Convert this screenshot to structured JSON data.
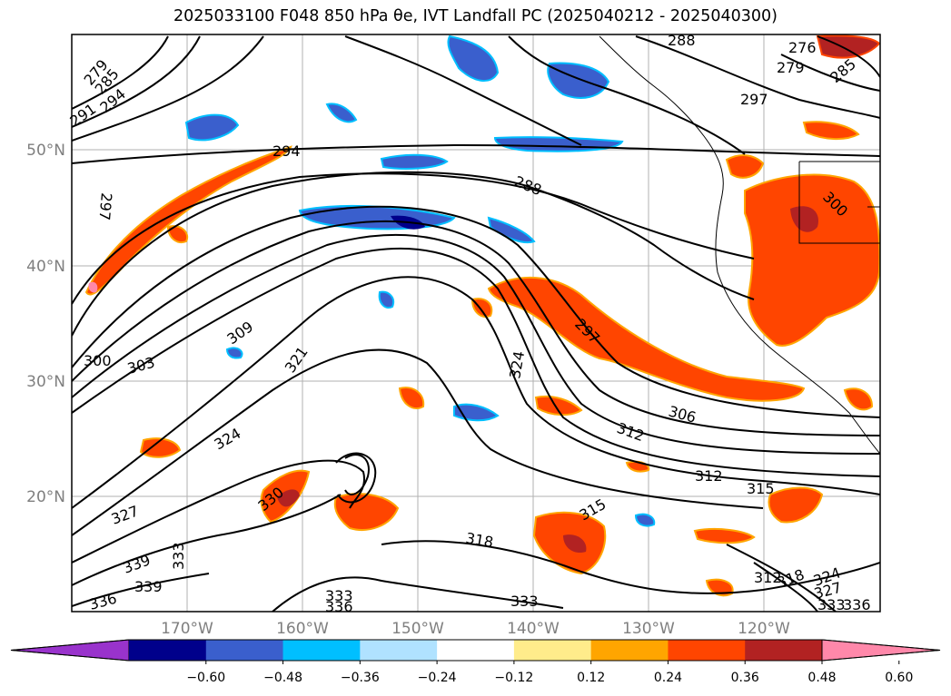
{
  "title": "2025033100 F048 850 hPa θe, IVT Landfall PC (2025040212 - 2025040300)",
  "map": {
    "lat_ticks": [
      "50°N",
      "40°N",
      "30°N",
      "20°N"
    ],
    "lon_ticks": [
      "170°W",
      "160°W",
      "150°W",
      "140°W",
      "130°W",
      "120°W"
    ],
    "contour_labels": [
      {
        "text": "279"
      },
      {
        "text": "285"
      },
      {
        "text": "294"
      },
      {
        "text": "291"
      },
      {
        "text": "294"
      },
      {
        "text": "297"
      },
      {
        "text": "288"
      },
      {
        "text": "276"
      },
      {
        "text": "279"
      },
      {
        "text": "285"
      },
      {
        "text": "297"
      },
      {
        "text": "288"
      },
      {
        "text": "300"
      },
      {
        "text": "300"
      },
      {
        "text": "303"
      },
      {
        "text": "309"
      },
      {
        "text": "321"
      },
      {
        "text": "324"
      },
      {
        "text": "297"
      },
      {
        "text": "306"
      },
      {
        "text": "312"
      },
      {
        "text": "324"
      },
      {
        "text": "327"
      },
      {
        "text": "330"
      },
      {
        "text": "312"
      },
      {
        "text": "315"
      },
      {
        "text": "315"
      },
      {
        "text": "318"
      },
      {
        "text": "339"
      },
      {
        "text": "333"
      },
      {
        "text": "339"
      },
      {
        "text": "336"
      },
      {
        "text": "333"
      },
      {
        "text": "336"
      },
      {
        "text": "333"
      },
      {
        "text": "312"
      },
      {
        "text": "318"
      },
      {
        "text": "324"
      },
      {
        "text": "327"
      },
      {
        "text": "333"
      },
      {
        "text": "336"
      }
    ]
  },
  "colorbar": {
    "colors": [
      "#9933cc",
      "#00008b",
      "#3a5fcd",
      "#00bfff",
      "#b0e2ff",
      "#ffffff",
      "#ffec8b",
      "#ffa500",
      "#ff4500",
      "#b22222",
      "#ff88aa"
    ],
    "ticks": [
      "−0.60",
      "−0.48",
      "−0.36",
      "−0.24",
      "−0.12",
      "0.12",
      "0.24",
      "0.36",
      "0.48",
      "0.60"
    ]
  }
}
